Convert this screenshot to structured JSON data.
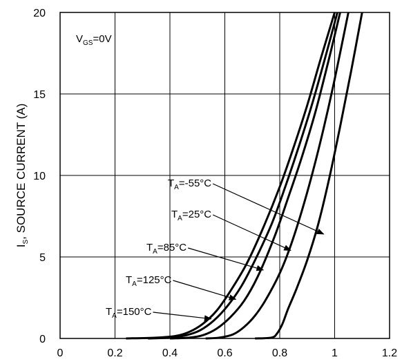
{
  "chart_data": {
    "type": "line",
    "title": "",
    "xlabel": "",
    "ylabel": "I_S, SOURCE CURRENT (A)",
    "ylabel_parts": {
      "main": "I",
      "sub": "S",
      "rest": ", SOURCE CURRENT (A)"
    },
    "xlim": [
      0,
      1.2
    ],
    "ylim": [
      0,
      20
    ],
    "x_ticks": [
      "0",
      "0.2",
      "0.4",
      "0.6",
      "0.8",
      "1",
      "1.2"
    ],
    "y_ticks": [
      "0",
      "5",
      "10",
      "15",
      "20"
    ],
    "grid": true,
    "condition": {
      "main": "V",
      "sub": "GS",
      "rest": "=0V"
    },
    "series": [
      {
        "name": "T_A=150°C",
        "label_main": "T",
        "label_sub": "A",
        "label_rest": "=150°C",
        "x": [
          0.24,
          0.35,
          0.42,
          0.47,
          0.52,
          0.57,
          0.62,
          0.68,
          0.74,
          0.8,
          0.85,
          0.9,
          0.95,
          1.0
        ],
        "y": [
          0.0,
          0.05,
          0.15,
          0.4,
          0.9,
          1.7,
          2.9,
          4.6,
          6.8,
          9.3,
          11.7,
          14.3,
          17.2,
          20.0
        ]
      },
      {
        "name": "T_A=125°C",
        "label_main": "T",
        "label_sub": "A",
        "label_rest": "=125°C",
        "x": [
          0.32,
          0.4,
          0.46,
          0.51,
          0.56,
          0.61,
          0.66,
          0.71,
          0.77,
          0.82,
          0.87,
          0.92,
          0.97,
          1.01
        ],
        "y": [
          0.0,
          0.05,
          0.2,
          0.5,
          1.1,
          2.0,
          3.2,
          4.8,
          7.0,
          9.3,
          11.8,
          14.5,
          17.5,
          20.0
        ]
      },
      {
        "name": "T_A=85°C",
        "label_main": "T",
        "label_sub": "A",
        "label_rest": "=85°C",
        "x": [
          0.4,
          0.47,
          0.52,
          0.57,
          0.62,
          0.67,
          0.72,
          0.78,
          0.83,
          0.88,
          0.93,
          0.98,
          1.02
        ],
        "y": [
          0.0,
          0.05,
          0.2,
          0.6,
          1.3,
          2.3,
          3.8,
          6.2,
          8.6,
          11.1,
          13.9,
          17.2,
          20.0
        ]
      },
      {
        "name": "T_A=25°C",
        "label_main": "T",
        "label_sub": "A",
        "label_rest": "=25°C",
        "x": [
          0.53,
          0.58,
          0.63,
          0.67,
          0.71,
          0.75,
          0.8,
          0.84,
          0.88,
          0.92,
          0.96,
          1.0,
          1.05
        ],
        "y": [
          0.0,
          0.05,
          0.25,
          0.7,
          1.4,
          2.4,
          4.0,
          5.7,
          7.8,
          10.2,
          12.9,
          15.9,
          20.0
        ]
      },
      {
        "name": "T_A=-55°C",
        "label_main": "T",
        "label_sub": "A",
        "label_rest": "=-55°C",
        "x": [
          0.71,
          0.77,
          0.79,
          0.81,
          0.83,
          0.86,
          0.9,
          0.94,
          0.98,
          1.02,
          1.06,
          1.1
        ],
        "y": [
          0.0,
          0.05,
          0.3,
          0.9,
          1.8,
          3.0,
          4.8,
          7.0,
          9.8,
          13.0,
          16.4,
          20.0
        ]
      }
    ],
    "annotations": [
      {
        "series": 0,
        "arrow_to": [
          0.55,
          1.2
        ]
      },
      {
        "series": 1,
        "arrow_to": [
          0.64,
          2.4
        ]
      },
      {
        "series": 2,
        "arrow_to": [
          0.74,
          4.2
        ]
      },
      {
        "series": 3,
        "arrow_to": [
          0.84,
          5.4
        ]
      },
      {
        "series": 4,
        "arrow_to": [
          0.96,
          6.4
        ]
      }
    ]
  }
}
